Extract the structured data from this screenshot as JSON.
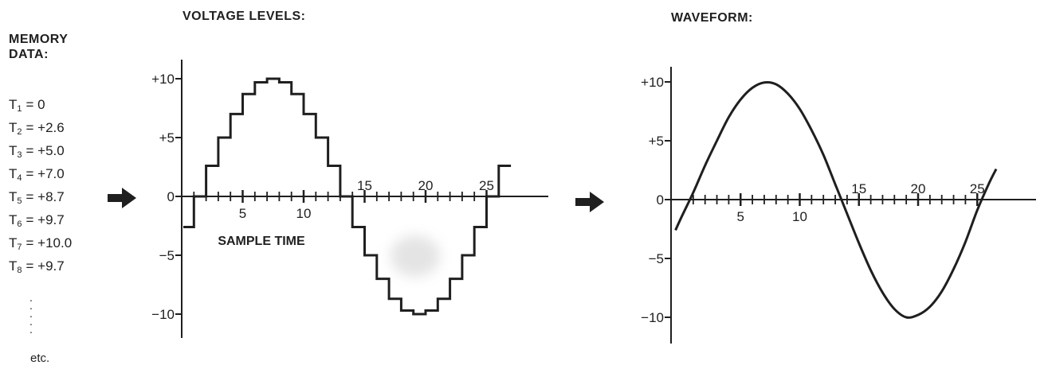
{
  "headings": {
    "memory_line1": "MEMORY",
    "memory_line2": "DATA:",
    "voltage": "VOLTAGE LEVELS:",
    "waveform": "WAVEFORM:"
  },
  "memory": [
    {
      "t": "T",
      "sub": "1",
      "val": "= 0"
    },
    {
      "t": "T",
      "sub": "2",
      "val": "= +2.6"
    },
    {
      "t": "T",
      "sub": "3",
      "val": "= +5.0"
    },
    {
      "t": "T",
      "sub": "4",
      "val": "= +7.0"
    },
    {
      "t": "T",
      "sub": "5",
      "val": "= +8.7"
    },
    {
      "t": "T",
      "sub": "6",
      "val": "= +9.7"
    },
    {
      "t": "T",
      "sub": "7",
      "val": "= +10.0"
    },
    {
      "t": "T",
      "sub": "8",
      "val": "= +9.7"
    }
  ],
  "ellipsis": ". . . . .",
  "etc": "etc.",
  "icons": {
    "arrow": "right-arrow-icon"
  },
  "colors": {
    "ink": "#1f1f1f",
    "background": "#ffffff"
  },
  "chart_data": [
    {
      "type": "step",
      "title": "VOLTAGE LEVELS:",
      "xlabel": "SAMPLE TIME",
      "ylabel": "",
      "ylim": [
        -11,
        11
      ],
      "xlim": [
        -1,
        30
      ],
      "yticks": [
        10,
        5,
        0,
        -5,
        -10
      ],
      "ytick_labels": [
        "+10",
        "+5",
        "0",
        "−5",
        "−10"
      ],
      "xtick_labels": [
        {
          "x": 5,
          "label": "5"
        },
        {
          "x": 10,
          "label": "10"
        },
        {
          "x": 15,
          "label": "15"
        },
        {
          "x": 20,
          "label": "20"
        },
        {
          "x": 25,
          "label": "25"
        }
      ],
      "x": [
        0,
        1,
        2,
        3,
        4,
        5,
        6,
        7,
        8,
        9,
        10,
        11,
        12,
        13,
        14,
        15,
        16,
        17,
        18,
        19,
        20,
        21,
        22,
        23,
        24,
        25,
        26
      ],
      "values": [
        -2.6,
        0,
        2.6,
        5.0,
        7.0,
        8.7,
        9.7,
        10.0,
        9.7,
        8.7,
        7.0,
        5.0,
        2.6,
        0,
        -2.6,
        -5.0,
        -7.0,
        -8.7,
        -9.7,
        -10.0,
        -9.7,
        -8.7,
        -7.0,
        -5.0,
        -2.6,
        0,
        2.6
      ],
      "grid": false
    },
    {
      "type": "line",
      "title": "WAVEFORM:",
      "xlabel": "",
      "ylabel": "",
      "ylim": [
        -11,
        11
      ],
      "xlim": [
        -1,
        30
      ],
      "yticks": [
        10,
        5,
        0,
        -5,
        -10
      ],
      "ytick_labels": [
        "+10",
        "+5",
        "0",
        "−5",
        "−10"
      ],
      "xtick_labels": [
        {
          "x": 5,
          "label": "5"
        },
        {
          "x": 10,
          "label": "10"
        },
        {
          "x": 15,
          "label": "15"
        },
        {
          "x": 20,
          "label": "20"
        },
        {
          "x": 25,
          "label": "25"
        }
      ],
      "x": [
        -0.5,
        0,
        1,
        2,
        3,
        4,
        5,
        6,
        7,
        8,
        9,
        10,
        11,
        12,
        13,
        14,
        15,
        16,
        17,
        18,
        19,
        20,
        21,
        22,
        23,
        24,
        25,
        26,
        26.6
      ],
      "values": [
        -2.6,
        -1.5,
        0.6,
        2.9,
        5.0,
        7.0,
        8.5,
        9.5,
        9.95,
        9.8,
        9.0,
        7.7,
        5.9,
        3.8,
        1.3,
        -1.2,
        -3.7,
        -6.0,
        -7.9,
        -9.3,
        -10.0,
        -9.8,
        -9.1,
        -7.8,
        -5.9,
        -3.6,
        -0.9,
        1.4,
        2.6
      ],
      "grid": false
    }
  ]
}
